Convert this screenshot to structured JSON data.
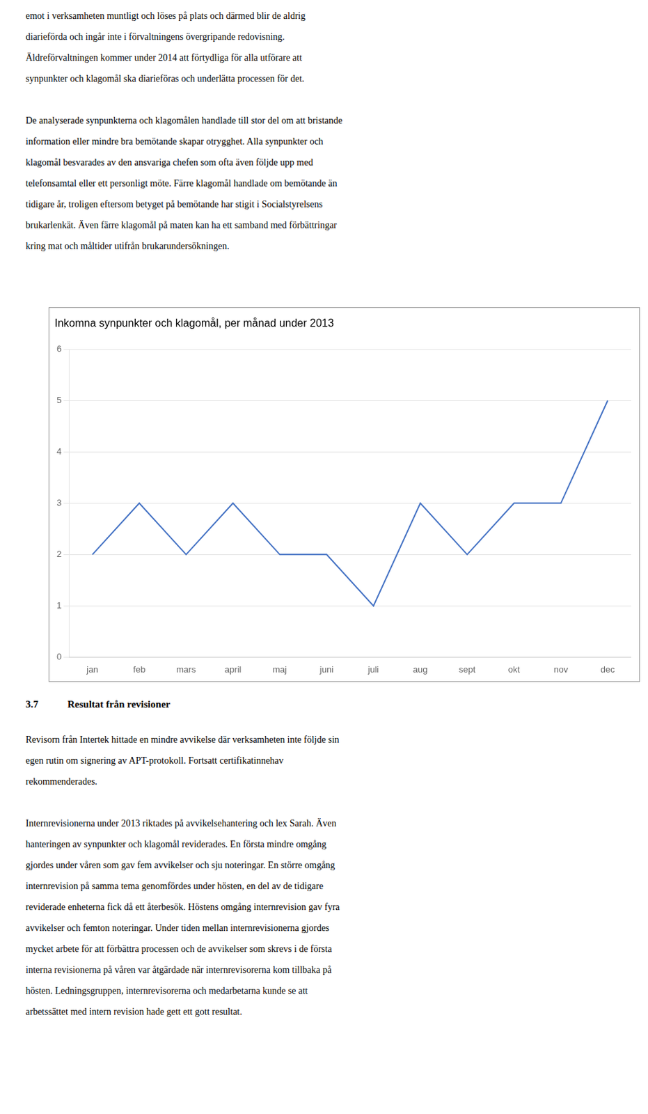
{
  "top_paragraphs": [
    [
      "emot i verksamheten muntligt och löses på plats och därmed blir de aldrig",
      "diarieförda och ingår inte i förvaltningens övergripande redovisning.",
      "Äldreförvaltningen kommer under 2014 att förtydliga för alla utförare att",
      "synpunkter och klagomål ska diarieföras och underlätta processen för det."
    ],
    [
      "De analyserade synpunkterna och klagomålen handlade till stor del om att bristande",
      "information eller mindre bra bemötande skapar otrygghet. Alla synpunkter och",
      "klagomål besvarades av den ansvariga chefen som ofta även följde upp med",
      "telefonsamtal eller ett personligt möte. Färre klagomål handlade om bemötande än",
      "tidigare år, troligen eftersom betyget på bemötande har stigit i Socialstyrelsens",
      "brukarlenkät. Även färre klagomål på maten kan ha ett samband med förbättringar",
      "kring mat och måltider utifrån brukarundersökningen."
    ]
  ],
  "chart_data": {
    "type": "line",
    "title": "Inkomna synpunkter och klagomål, per månad under 2013",
    "categories": [
      "jan",
      "feb",
      "mars",
      "april",
      "maj",
      "juni",
      "juli",
      "aug",
      "sept",
      "okt",
      "nov",
      "dec"
    ],
    "values": [
      2,
      3,
      2,
      3,
      2,
      2,
      1,
      3,
      2,
      3,
      3,
      5
    ],
    "color": "#4472C4",
    "ylim": [
      0,
      6
    ],
    "yticks": [
      0,
      1,
      2,
      3,
      4,
      5,
      6
    ],
    "grid": "y"
  },
  "section_num": "3.7",
  "section_heading": "Resultat från revisioner",
  "footer_paragraphs": [
    [
      "Revisorn från Intertek hittade en mindre avvikelse där verksamheten inte följde sin",
      "egen rutin om signering av APT-protokoll. Fortsatt certifikatinnehav",
      "rekommenderades."
    ],
    [
      "Internrevisionerna under 2013 riktades på avvikelsehantering och lex Sarah. Även",
      "hanteringen av synpunkter och klagomål reviderades. En första mindre omgång",
      "gjordes under våren som gav fem avvikelser och sju noteringar. En större omgång",
      "internrevision på samma tema genomfördes under hösten, en del av de tidigare",
      "reviderade enheterna fick då ett återbesök. Höstens omgång internrevision gav fyra",
      "avvikelser och femton noteringar. Under tiden mellan internrevisionerna gjordes",
      "mycket arbete för att förbättra processen och de avvikelser som skrevs i de första",
      "interna revisionerna på våren var åtgärdade när internrevisorerna kom tillbaka på",
      "hösten. Ledningsgruppen, internrevisorerna och medarbetarna kunde se att",
      "arbetssättet med intern revision hade gett ett gott resultat."
    ]
  ]
}
